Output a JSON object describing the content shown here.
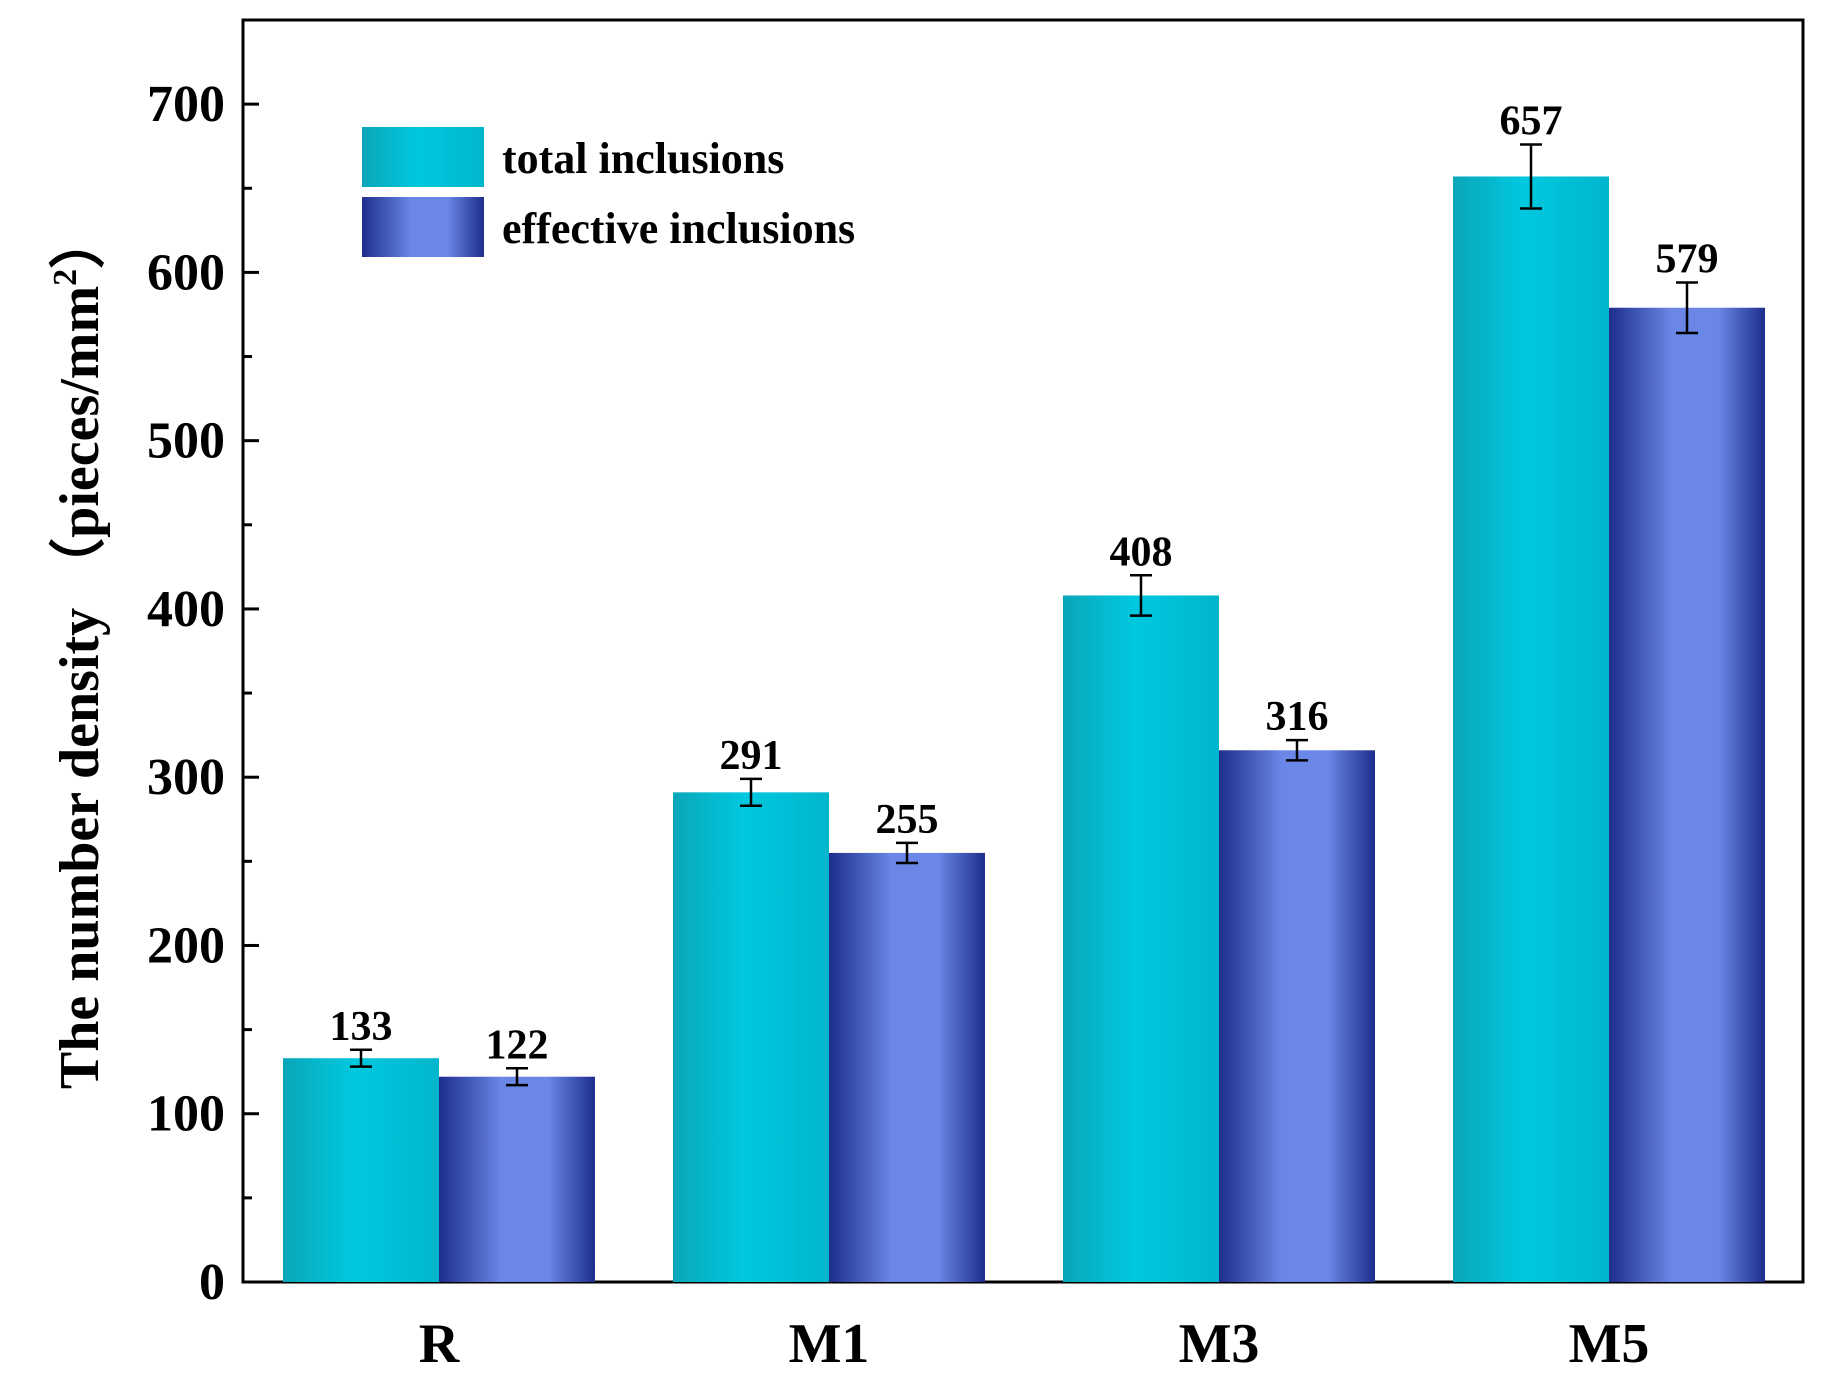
{
  "chart_data": {
    "type": "bar",
    "title": "",
    "xlabel": "",
    "ylabel": "The number density （pieces/mm",
    "ylabel_superscript": "2",
    "ylabel_close": "）",
    "categories": [
      "R",
      "M1",
      "M3",
      "M5"
    ],
    "series": [
      {
        "name": "total inclusions",
        "values": [
          133,
          291,
          408,
          657
        ],
        "errors": [
          5,
          8,
          12,
          19
        ]
      },
      {
        "name": "effective inclusions",
        "values": [
          122,
          255,
          316,
          579
        ],
        "errors": [
          5,
          6,
          6,
          15
        ]
      }
    ],
    "data_labels": [
      [
        "133",
        "291",
        "408",
        "657"
      ],
      [
        "122",
        "255",
        "316",
        "579"
      ]
    ],
    "ylim": [
      0,
      750
    ],
    "yticks": [
      0,
      100,
      200,
      300,
      400,
      500,
      600,
      700
    ],
    "ytick_labels": [
      "0",
      "100",
      "200",
      "300",
      "400",
      "500",
      "600",
      "700"
    ],
    "grid": false,
    "legend_position": "top-left"
  },
  "colors": {
    "total_dark": "#0aa6b8",
    "total_light": "#00c8df",
    "effective_dark": "#1d2e8c",
    "effective_light": "#6a86e6"
  }
}
